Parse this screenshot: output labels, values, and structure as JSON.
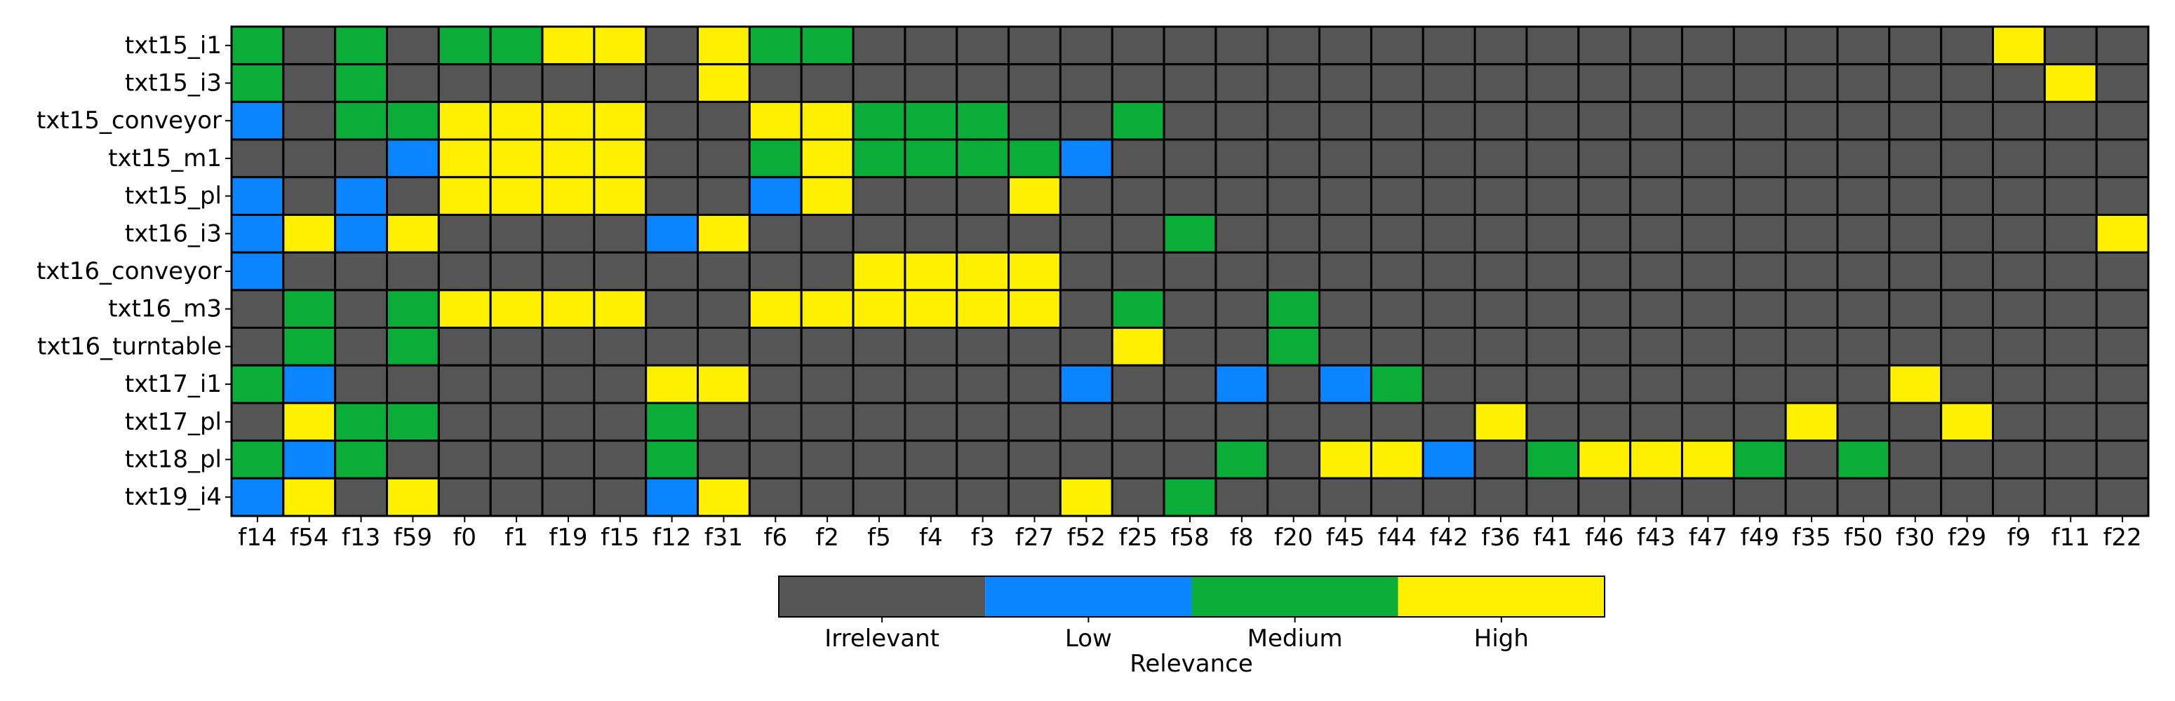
{
  "chart_data": {
    "type": "heatmap",
    "rows": [
      "txt15_i1",
      "txt15_i3",
      "txt15_conveyor",
      "txt15_m1",
      "txt15_pl",
      "txt16_i3",
      "txt16_conveyor",
      "txt16_m3",
      "txt16_turntable",
      "txt17_i1",
      "txt17_pl",
      "txt18_pl",
      "txt19_i4"
    ],
    "columns": [
      "f14",
      "f54",
      "f13",
      "f59",
      "f0",
      "f1",
      "f19",
      "f15",
      "f12",
      "f31",
      "f6",
      "f2",
      "f5",
      "f4",
      "f3",
      "f27",
      "f52",
      "f25",
      "f58",
      "f8",
      "f20",
      "f45",
      "f44",
      "f42",
      "f36",
      "f41",
      "f46",
      "f43",
      "f47",
      "f49",
      "f35",
      "f50",
      "f30",
      "f29",
      "f9",
      "f11",
      "f22"
    ],
    "levels": [
      "Irrelevant",
      "Low",
      "Medium",
      "High"
    ],
    "level_colors": [
      "#555555",
      "#0a84ff",
      "#0aad37",
      "#fff000"
    ],
    "values": [
      [
        2,
        0,
        2,
        0,
        2,
        2,
        3,
        3,
        0,
        3,
        2,
        2,
        0,
        0,
        0,
        0,
        0,
        0,
        0,
        0,
        0,
        0,
        0,
        0,
        0,
        0,
        0,
        0,
        0,
        0,
        0,
        0,
        0,
        0,
        3,
        0,
        0
      ],
      [
        2,
        0,
        2,
        0,
        0,
        0,
        0,
        0,
        0,
        3,
        0,
        0,
        0,
        0,
        0,
        0,
        0,
        0,
        0,
        0,
        0,
        0,
        0,
        0,
        0,
        0,
        0,
        0,
        0,
        0,
        0,
        0,
        0,
        0,
        0,
        3,
        0
      ],
      [
        1,
        0,
        2,
        2,
        3,
        3,
        3,
        3,
        0,
        0,
        3,
        3,
        2,
        2,
        2,
        0,
        0,
        2,
        0,
        0,
        0,
        0,
        0,
        0,
        0,
        0,
        0,
        0,
        0,
        0,
        0,
        0,
        0,
        0,
        0,
        0,
        0
      ],
      [
        0,
        0,
        0,
        1,
        3,
        3,
        3,
        3,
        0,
        0,
        2,
        3,
        2,
        2,
        2,
        2,
        1,
        0,
        0,
        0,
        0,
        0,
        0,
        0,
        0,
        0,
        0,
        0,
        0,
        0,
        0,
        0,
        0,
        0,
        0,
        0,
        0
      ],
      [
        1,
        0,
        1,
        0,
        3,
        3,
        3,
        3,
        0,
        0,
        1,
        3,
        0,
        0,
        0,
        3,
        0,
        0,
        0,
        0,
        0,
        0,
        0,
        0,
        0,
        0,
        0,
        0,
        0,
        0,
        0,
        0,
        0,
        0,
        0,
        0,
        0
      ],
      [
        1,
        3,
        1,
        3,
        0,
        0,
        0,
        0,
        1,
        3,
        0,
        0,
        0,
        0,
        0,
        0,
        0,
        0,
        2,
        0,
        0,
        0,
        0,
        0,
        0,
        0,
        0,
        0,
        0,
        0,
        0,
        0,
        0,
        0,
        0,
        0,
        3
      ],
      [
        1,
        0,
        0,
        0,
        0,
        0,
        0,
        0,
        0,
        0,
        0,
        0,
        3,
        3,
        3,
        3,
        0,
        0,
        0,
        0,
        0,
        0,
        0,
        0,
        0,
        0,
        0,
        0,
        0,
        0,
        0,
        0,
        0,
        0,
        0,
        0,
        0
      ],
      [
        0,
        2,
        0,
        2,
        3,
        3,
        3,
        3,
        0,
        0,
        3,
        3,
        3,
        3,
        3,
        3,
        0,
        2,
        0,
        0,
        2,
        0,
        0,
        0,
        0,
        0,
        0,
        0,
        0,
        0,
        0,
        0,
        0,
        0,
        0,
        0,
        0
      ],
      [
        0,
        2,
        0,
        2,
        0,
        0,
        0,
        0,
        0,
        0,
        0,
        0,
        0,
        0,
        0,
        0,
        0,
        3,
        0,
        0,
        2,
        0,
        0,
        0,
        0,
        0,
        0,
        0,
        0,
        0,
        0,
        0,
        0,
        0,
        0,
        0,
        0
      ],
      [
        2,
        1,
        0,
        0,
        0,
        0,
        0,
        0,
        3,
        3,
        0,
        0,
        0,
        0,
        0,
        0,
        1,
        0,
        0,
        1,
        0,
        1,
        2,
        0,
        0,
        0,
        0,
        0,
        0,
        0,
        0,
        0,
        3,
        0,
        0,
        0,
        0
      ],
      [
        0,
        3,
        2,
        2,
        0,
        0,
        0,
        0,
        2,
        0,
        0,
        0,
        0,
        0,
        0,
        0,
        0,
        0,
        0,
        0,
        0,
        0,
        0,
        0,
        3,
        0,
        0,
        0,
        0,
        0,
        3,
        0,
        0,
        3,
        0,
        0,
        0
      ],
      [
        2,
        1,
        2,
        0,
        0,
        0,
        0,
        0,
        2,
        0,
        0,
        0,
        0,
        0,
        0,
        0,
        0,
        0,
        0,
        2,
        0,
        3,
        3,
        1,
        0,
        2,
        3,
        3,
        3,
        2,
        0,
        2,
        0,
        0,
        0,
        0,
        0
      ],
      [
        1,
        3,
        0,
        3,
        0,
        0,
        0,
        0,
        1,
        3,
        0,
        0,
        0,
        0,
        0,
        0,
        3,
        0,
        2,
        0,
        0,
        0,
        0,
        0,
        0,
        0,
        0,
        0,
        0,
        0,
        0,
        0,
        0,
        0,
        0,
        0,
        0
      ]
    ],
    "colorbar_label": "Relevance",
    "grid": true
  }
}
